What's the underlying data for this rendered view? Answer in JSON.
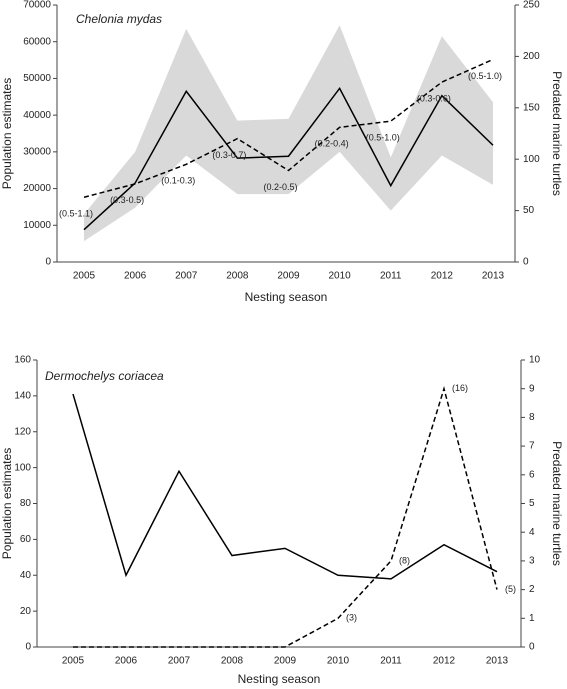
{
  "chart_data": [
    {
      "type": "line",
      "title": "Chelonia mydas",
      "x_label": "Nesting season",
      "y_label": "Population estimates",
      "y2_label": "Predated marine turtles",
      "categories": [
        "2005",
        "2006",
        "2007",
        "2008",
        "2009",
        "2010",
        "2011",
        "2012",
        "2013"
      ],
      "ylim": [
        0,
        70000
      ],
      "yticks": [
        0,
        10000,
        20000,
        30000,
        40000,
        50000,
        60000,
        70000
      ],
      "y2lim": [
        0,
        250
      ],
      "y2ticks": [
        0,
        50,
        100,
        150,
        200,
        250
      ],
      "band": {
        "color": "#d9d9d9",
        "lower": [
          5700,
          14800,
          29000,
          18500,
          18500,
          30000,
          14000,
          29000,
          21000
        ],
        "upper": [
          13000,
          30000,
          63500,
          38500,
          39000,
          64500,
          28500,
          61500,
          43500
        ]
      },
      "series": [
        {
          "color": "#000000",
          "dash": false,
          "values": [
            8800,
            21500,
            46500,
            28300,
            28800,
            47300,
            20800,
            45300,
            31800
          ]
        },
        {
          "color": "#000000",
          "dash": true,
          "axis": "y2",
          "values": [
            63,
            76,
            95,
            120,
            89,
            131,
            137,
            175,
            197
          ],
          "point_labels": [
            "(0.5-1.1)",
            "(0.3-0.5)",
            "(0.1-0.3)",
            "(0.3-0.7)",
            "(0.2-0.5)",
            "(0.2-0.4)",
            "(0.5-1.0)",
            "(0.3-0.6)",
            "(0.5-1.0)"
          ]
        }
      ]
    },
    {
      "type": "line",
      "title": "Dermochelys coriacea",
      "x_label": "Nesting season",
      "y_label": "Population estimates",
      "y2_label": "Predated marine turtles",
      "categories": [
        "2005",
        "2006",
        "2007",
        "2008",
        "2009",
        "2010",
        "2011",
        "2012",
        "2013"
      ],
      "ylim": [
        0,
        160
      ],
      "yticks": [
        0,
        20,
        40,
        60,
        80,
        100,
        120,
        140,
        160
      ],
      "y2lim": [
        0,
        10
      ],
      "y2ticks": [
        0,
        1,
        2,
        3,
        4,
        5,
        6,
        7,
        8,
        9,
        10
      ],
      "series": [
        {
          "color": "#000000",
          "dash": false,
          "values": [
            141,
            40,
            98,
            51,
            55,
            40,
            38,
            57,
            42
          ]
        },
        {
          "color": "#000000",
          "dash": true,
          "axis": "y2",
          "values": [
            0,
            0,
            0,
            0,
            0,
            1,
            3,
            9,
            2
          ],
          "point_labels": [
            null,
            null,
            null,
            null,
            null,
            "(3)",
            "(8)",
            "(16)",
            "(5)"
          ]
        }
      ]
    }
  ]
}
